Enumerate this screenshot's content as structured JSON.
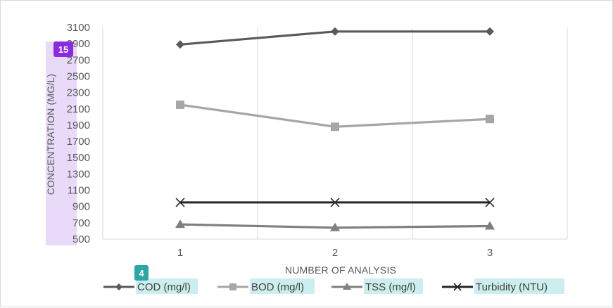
{
  "chart_data": {
    "type": "line",
    "title": "",
    "xlabel": "NUMBER OF ANALYSIS",
    "ylabel": "CONCENTRATION (MG/L)",
    "x": [
      1,
      2,
      3
    ],
    "x_tick_labels": [
      "1",
      "2",
      "3"
    ],
    "ylim": [
      500,
      3100
    ],
    "y_ticks": [
      500,
      700,
      900,
      1100,
      1300,
      1500,
      1700,
      1900,
      2100,
      2300,
      2500,
      2700,
      2900,
      3100
    ],
    "y_tick_labels": [
      "500",
      "700",
      "900",
      "1100",
      "1300",
      "1500",
      "1700",
      "1900",
      "2100",
      "2300",
      "2500",
      "2700",
      "2900",
      "3100"
    ],
    "grid": "vertical",
    "legend": "bottom",
    "series": [
      {
        "name": "COD (mg/l)",
        "values": [
          2890,
          3050,
          3050
        ],
        "color": "#5a5a5a",
        "marker": "diamond"
      },
      {
        "name": "BOD (mg/l)",
        "values": [
          2150,
          1880,
          1975
        ],
        "color": "#a6a6a6",
        "marker": "square"
      },
      {
        "name": "TSS (mg/l)",
        "values": [
          680,
          640,
          660
        ],
        "color": "#7f7f7f",
        "marker": "triangle"
      },
      {
        "name": "Turbidity (NTU)",
        "values": [
          950,
          950,
          950
        ],
        "color": "#262626",
        "marker": "x"
      }
    ]
  },
  "badges": {
    "ylabel_badge": "15",
    "legend_badge": "4"
  },
  "colors": {
    "ylabel_highlight": "#e4d4f7",
    "ylabel_badge": "#8a2be2",
    "legend_highlight": "#cdeeee",
    "legend_badge": "#2aa6a6"
  }
}
